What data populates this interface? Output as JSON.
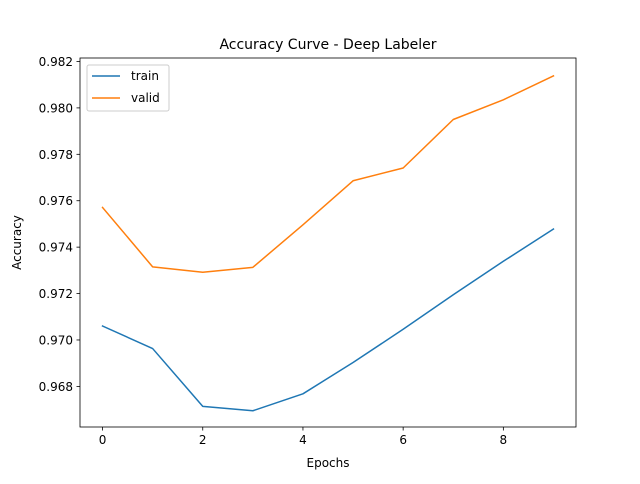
{
  "chart_data": {
    "type": "line",
    "title": "Accuracy Curve - Deep Labeler",
    "xlabel": "Epochs",
    "ylabel": "Accuracy",
    "xlim": [
      -0.45,
      9.45
    ],
    "ylim": [
      0.96625,
      0.98215
    ],
    "xticks": [
      0,
      2,
      4,
      6,
      8
    ],
    "xtick_labels": [
      "0",
      "2",
      "4",
      "6",
      "8"
    ],
    "yticks": [
      0.968,
      0.97,
      0.972,
      0.974,
      0.976,
      0.978,
      0.98,
      0.982
    ],
    "ytick_labels": [
      "0.968",
      "0.970",
      "0.972",
      "0.974",
      "0.976",
      "0.978",
      "0.980",
      "0.982"
    ],
    "grid": false,
    "legend_position": "top-left",
    "x": [
      0,
      1,
      2,
      3,
      4,
      5,
      6,
      7,
      8,
      9
    ],
    "series": [
      {
        "name": "train",
        "color": "#1f77b4",
        "values": [
          0.9706,
          0.96963,
          0.96714,
          0.96695,
          0.96768,
          0.96903,
          0.97046,
          0.97195,
          0.97339,
          0.97478
        ]
      },
      {
        "name": "valid",
        "color": "#ff7f0e",
        "values": [
          0.97571,
          0.97315,
          0.97292,
          0.97313,
          0.97496,
          0.97686,
          0.97741,
          0.9795,
          0.98035,
          0.98138
        ]
      }
    ]
  }
}
